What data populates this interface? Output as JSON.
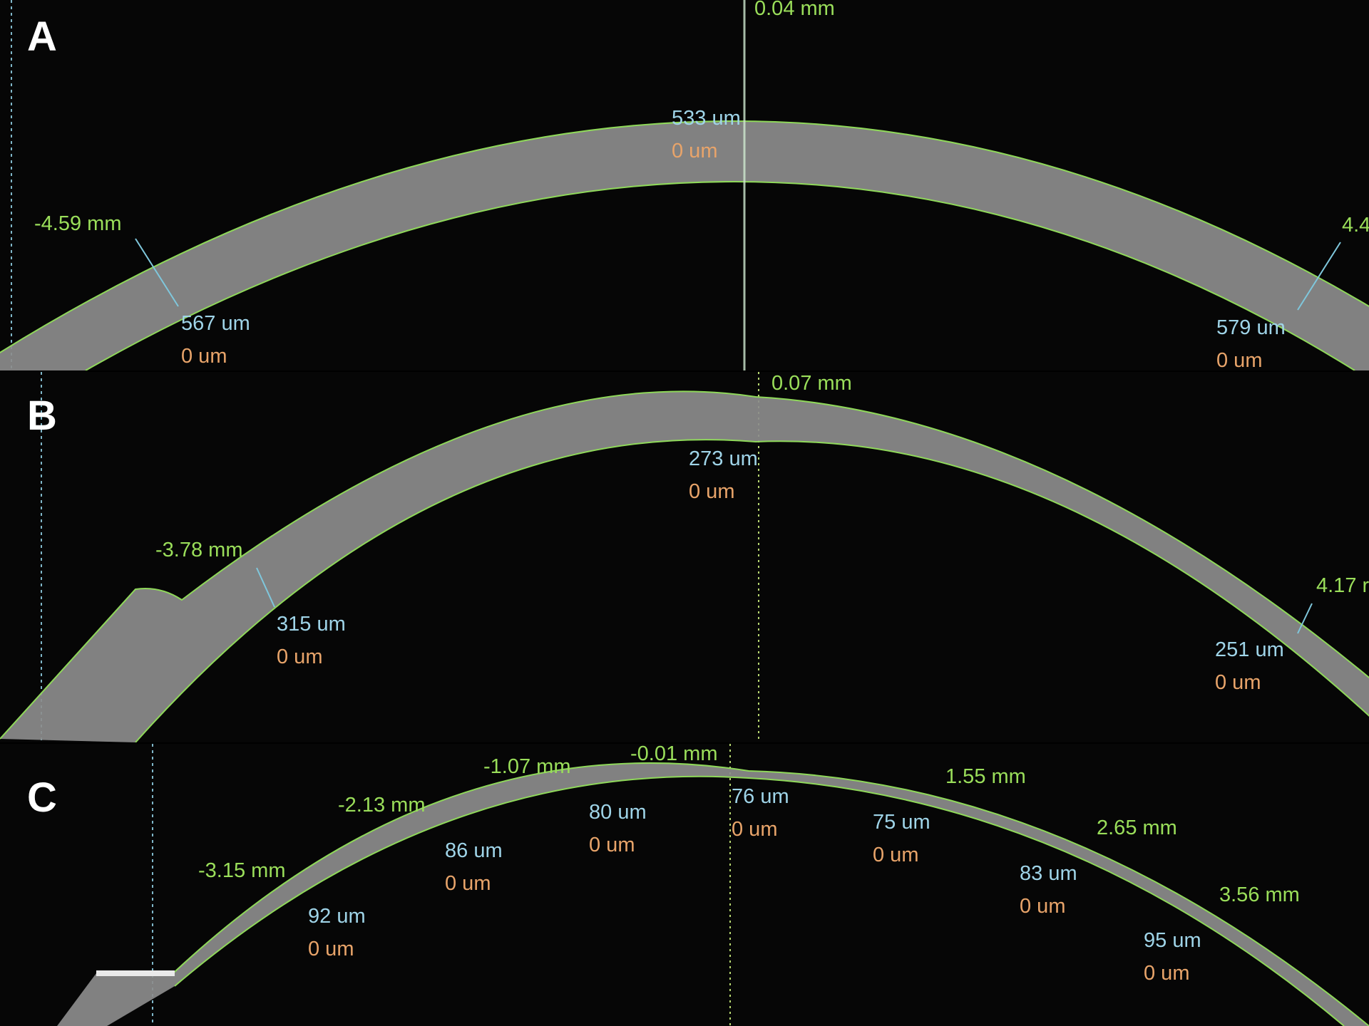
{
  "colors": {
    "boundary": "#8fd85a",
    "thickness_text": "#9fd4e8",
    "zero_text": "#e8a46a",
    "mm_text": "#9ade5a",
    "tissue": "#8a8a8a"
  },
  "panels": [
    {
      "letter": "A",
      "markers": [
        {
          "mm": "0.04 mm",
          "thickness": "533 um",
          "delta": "0 um"
        },
        {
          "mm": "-4.59 mm",
          "thickness": "567 um",
          "delta": "0 um"
        },
        {
          "mm": "4.4",
          "thickness": "579 um",
          "delta": "0 um"
        }
      ]
    },
    {
      "letter": "B",
      "markers": [
        {
          "mm": "0.07 mm",
          "thickness": "273 um",
          "delta": "0 um"
        },
        {
          "mm": "-3.78 mm",
          "thickness": "315 um",
          "delta": "0 um"
        },
        {
          "mm": "4.17 r",
          "thickness": "251 um",
          "delta": "0 um"
        }
      ]
    },
    {
      "letter": "C",
      "markers": [
        {
          "mm": "-0.01 mm",
          "thickness": "76 um",
          "delta": "0 um"
        },
        {
          "mm": "-1.07 mm",
          "thickness": "80 um",
          "delta": "0 um"
        },
        {
          "mm": "-2.13 mm",
          "thickness": "86 um",
          "delta": "0 um"
        },
        {
          "mm": "-3.15 mm",
          "thickness": "92 um",
          "delta": "0 um"
        },
        {
          "mm": "1.55 mm",
          "thickness": "75 um",
          "delta": "0 um"
        },
        {
          "mm": "2.65 mm",
          "thickness": "83 um",
          "delta": "0 um"
        },
        {
          "mm": "3.56 mm",
          "thickness": "95 um",
          "delta": "0 um"
        }
      ]
    }
  ]
}
